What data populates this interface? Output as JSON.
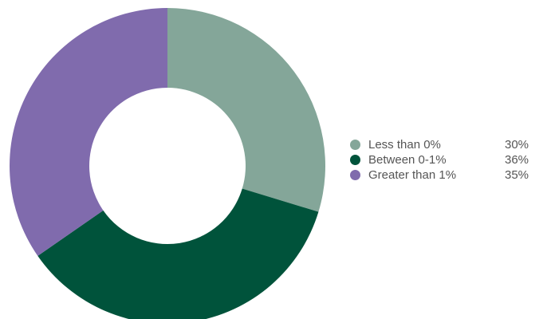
{
  "chart_data": {
    "type": "pie",
    "donut": true,
    "title": "",
    "start_angle_deg": 0,
    "direction": "clockwise",
    "legend_position": "right",
    "slices": [
      {
        "label": "Less than 0%",
        "value": 30,
        "display": "30%",
        "color": "#84A699"
      },
      {
        "label": "Between 0-1%",
        "value": 36,
        "display": "36%",
        "color": "#00533B"
      },
      {
        "label": "Greater than 1%",
        "value": 35,
        "display": "35%",
        "color": "#806BAD"
      }
    ]
  }
}
